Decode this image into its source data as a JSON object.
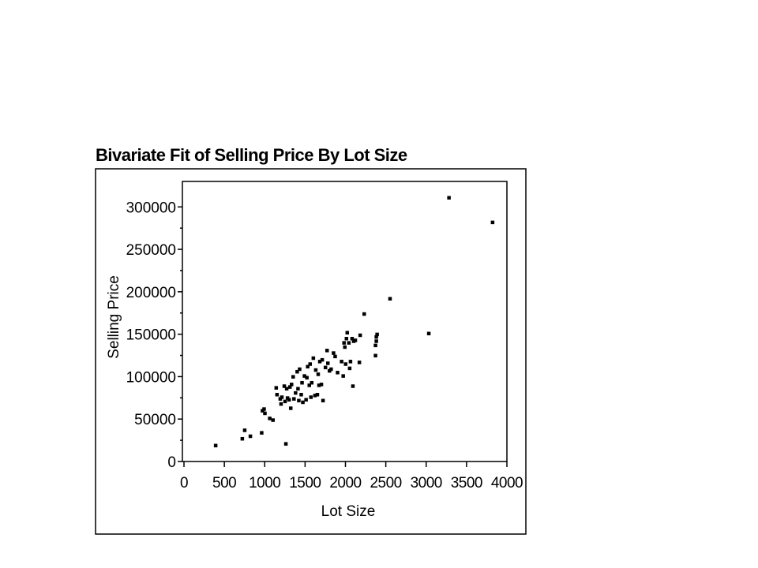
{
  "chart_data": {
    "type": "scatter",
    "title": "Bivariate Fit of Selling Price By Lot Size",
    "xlabel": "Lot Size",
    "ylabel": "Selling Price",
    "xlim": [
      0,
      4000
    ],
    "ylim": [
      0,
      330000
    ],
    "x_ticks": [
      0,
      500,
      1000,
      1500,
      2000,
      2500,
      3000,
      3500,
      4000
    ],
    "x_tick_labels": [
      "0",
      "500",
      "1000",
      "1500",
      "2000",
      "2500",
      "3000",
      "3500",
      "4000"
    ],
    "y_ticks": [
      0,
      50000,
      100000,
      150000,
      200000,
      250000,
      300000
    ],
    "y_tick_labels": [
      "0",
      "50000",
      "100000",
      "150000",
      "200000",
      "250000",
      "300000"
    ],
    "grid": false,
    "marker_color": "#000000",
    "points": [
      [
        390,
        19000
      ],
      [
        720,
        27000
      ],
      [
        750,
        37000
      ],
      [
        820,
        30000
      ],
      [
        960,
        34000
      ],
      [
        970,
        60000
      ],
      [
        990,
        62000
      ],
      [
        1000,
        57000
      ],
      [
        1060,
        51000
      ],
      [
        1100,
        49000
      ],
      [
        1140,
        87000
      ],
      [
        1150,
        79000
      ],
      [
        1190,
        74000
      ],
      [
        1200,
        68000
      ],
      [
        1210,
        76000
      ],
      [
        1240,
        89000
      ],
      [
        1250,
        71000
      ],
      [
        1260,
        21000
      ],
      [
        1270,
        86000
      ],
      [
        1280,
        75000
      ],
      [
        1300,
        73000
      ],
      [
        1310,
        88000
      ],
      [
        1320,
        63000
      ],
      [
        1330,
        91000
      ],
      [
        1350,
        100000
      ],
      [
        1360,
        74000
      ],
      [
        1380,
        81000
      ],
      [
        1400,
        106000
      ],
      [
        1410,
        86000
      ],
      [
        1420,
        72000
      ],
      [
        1430,
        109000
      ],
      [
        1450,
        79000
      ],
      [
        1460,
        93000
      ],
      [
        1470,
        70000
      ],
      [
        1490,
        101000
      ],
      [
        1510,
        73000
      ],
      [
        1520,
        99000
      ],
      [
        1530,
        112000
      ],
      [
        1550,
        90000
      ],
      [
        1560,
        115000
      ],
      [
        1570,
        76000
      ],
      [
        1580,
        93000
      ],
      [
        1600,
        122000
      ],
      [
        1620,
        78000
      ],
      [
        1630,
        108000
      ],
      [
        1650,
        79000
      ],
      [
        1660,
        103000
      ],
      [
        1670,
        90000
      ],
      [
        1680,
        118000
      ],
      [
        1700,
        91000
      ],
      [
        1710,
        120000
      ],
      [
        1720,
        72000
      ],
      [
        1750,
        111000
      ],
      [
        1770,
        131000
      ],
      [
        1780,
        116000
      ],
      [
        1800,
        107000
      ],
      [
        1820,
        109000
      ],
      [
        1850,
        128000
      ],
      [
        1870,
        124000
      ],
      [
        1900,
        105000
      ],
      [
        1950,
        118000
      ],
      [
        1970,
        101000
      ],
      [
        1980,
        140000
      ],
      [
        1990,
        135000
      ],
      [
        2000,
        115000
      ],
      [
        2010,
        145000
      ],
      [
        2020,
        152000
      ],
      [
        2040,
        140000
      ],
      [
        2050,
        110000
      ],
      [
        2060,
        118000
      ],
      [
        2080,
        145000
      ],
      [
        2090,
        89000
      ],
      [
        2100,
        142000
      ],
      [
        2120,
        143000
      ],
      [
        2170,
        117000
      ],
      [
        2180,
        149000
      ],
      [
        2230,
        174000
      ],
      [
        2370,
        125000
      ],
      [
        2370,
        137000
      ],
      [
        2380,
        142000
      ],
      [
        2380,
        147000
      ],
      [
        2390,
        150000
      ],
      [
        2550,
        192000
      ],
      [
        3030,
        151000
      ],
      [
        3280,
        311000
      ],
      [
        3820,
        282000
      ]
    ]
  }
}
